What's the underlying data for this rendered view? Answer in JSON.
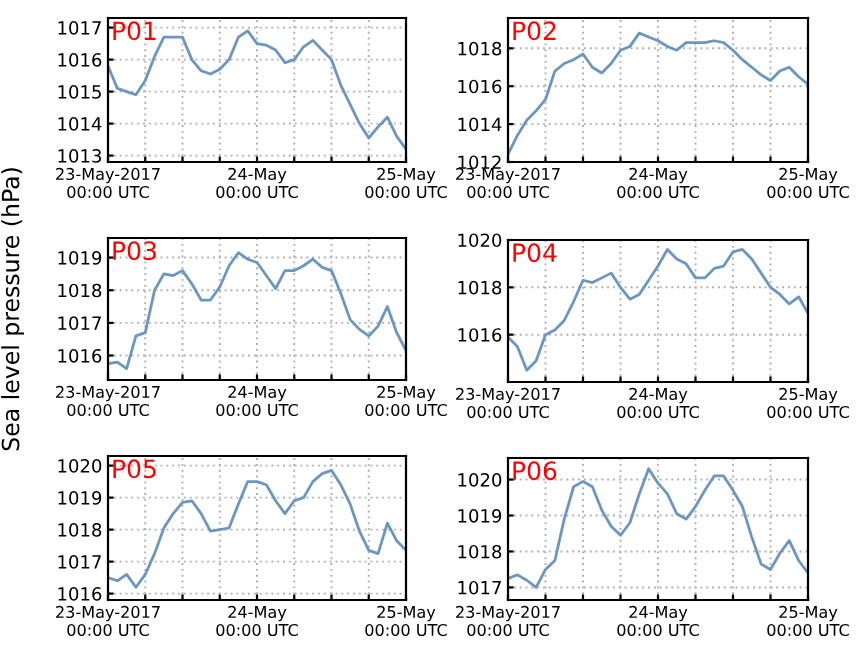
{
  "chart_data": [
    {
      "type": "line",
      "title": "P01",
      "x": [
        "2017-05-23T00:00",
        "2017-05-23T01:30",
        "2017-05-23T03:00",
        "2017-05-23T04:30",
        "2017-05-23T06:00",
        "2017-05-23T07:30",
        "2017-05-23T09:00",
        "2017-05-23T10:30",
        "2017-05-23T12:00",
        "2017-05-23T13:30",
        "2017-05-23T15:00",
        "2017-05-23T16:30",
        "2017-05-23T18:00",
        "2017-05-23T19:30",
        "2017-05-23T21:00",
        "2017-05-23T22:30",
        "2017-05-24T00:00",
        "2017-05-24T01:30",
        "2017-05-24T03:00",
        "2017-05-24T04:30",
        "2017-05-24T06:00",
        "2017-05-24T07:30",
        "2017-05-24T09:00",
        "2017-05-24T10:30",
        "2017-05-24T12:00",
        "2017-05-24T13:30",
        "2017-05-24T15:00",
        "2017-05-24T16:30",
        "2017-05-24T18:00",
        "2017-05-24T19:30",
        "2017-05-24T21:00",
        "2017-05-24T22:30",
        "2017-05-25T00:00"
      ],
      "series": [
        {
          "color": "#6a96c0",
          "values": [
            1015.8,
            1015.1,
            1015.0,
            1014.9,
            1015.35,
            1016.1,
            1016.7,
            1016.7,
            1016.7,
            1016.0,
            1015.65,
            1015.55,
            1015.7,
            1016.0,
            1016.7,
            1016.9,
            1016.5,
            1016.45,
            1016.3,
            1015.9,
            1016.0,
            1016.4,
            1016.6,
            1016.3,
            1016.0,
            1015.2,
            1014.6,
            1014.0,
            1013.55,
            1013.9,
            1014.2,
            1013.6,
            1013.2
          ]
        }
      ],
      "xlim": [
        "2017-05-23T00:00",
        "2017-05-25T00:00"
      ],
      "xticks": [
        {
          "value": "2017-05-23T00:00",
          "label": "23-May-2017\n00:00 UTC"
        },
        {
          "value": "2017-05-23T06:00",
          "label": null
        },
        {
          "value": "2017-05-23T12:00",
          "label": null
        },
        {
          "value": "2017-05-23T18:00",
          "label": null
        },
        {
          "value": "2017-05-24T00:00",
          "label": "24-May\n00:00 UTC"
        },
        {
          "value": "2017-05-24T06:00",
          "label": null
        },
        {
          "value": "2017-05-24T12:00",
          "label": null
        },
        {
          "value": "2017-05-24T18:00",
          "label": null
        },
        {
          "value": "2017-05-25T00:00",
          "label": "25-May\n00:00 UTC"
        }
      ],
      "ylim": [
        1012.8,
        1017.3
      ],
      "yticks": [
        1013,
        1014,
        1015,
        1016,
        1017
      ],
      "grid": true,
      "line_style": "solid"
    },
    {
      "type": "line",
      "title": "P02",
      "x": [
        "2017-05-23T00:00",
        "2017-05-23T01:30",
        "2017-05-23T03:00",
        "2017-05-23T04:30",
        "2017-05-23T06:00",
        "2017-05-23T07:30",
        "2017-05-23T09:00",
        "2017-05-23T10:30",
        "2017-05-23T12:00",
        "2017-05-23T13:30",
        "2017-05-23T15:00",
        "2017-05-23T16:30",
        "2017-05-23T18:00",
        "2017-05-23T19:30",
        "2017-05-23T21:00",
        "2017-05-23T22:30",
        "2017-05-24T00:00",
        "2017-05-24T01:30",
        "2017-05-24T03:00",
        "2017-05-24T04:30",
        "2017-05-24T06:00",
        "2017-05-24T07:30",
        "2017-05-24T09:00",
        "2017-05-24T10:30",
        "2017-05-24T12:00",
        "2017-05-24T13:30",
        "2017-05-24T15:00",
        "2017-05-24T16:30",
        "2017-05-24T18:00",
        "2017-05-24T19:30",
        "2017-05-24T21:00",
        "2017-05-24T22:30",
        "2017-05-25T00:00"
      ],
      "series": [
        {
          "color": "#6a96c0",
          "values": [
            1012.4,
            1013.4,
            1014.2,
            1014.7,
            1015.3,
            1016.8,
            1017.2,
            1017.4,
            1017.7,
            1017.0,
            1016.7,
            1017.2,
            1017.9,
            1018.1,
            1018.8,
            1018.6,
            1018.4,
            1018.1,
            1017.9,
            1018.3,
            1018.3,
            1018.3,
            1018.4,
            1018.3,
            1017.9,
            1017.4,
            1017.0,
            1016.6,
            1016.3,
            1016.8,
            1017.0,
            1016.5,
            1016.1
          ]
        }
      ],
      "xlim": [
        "2017-05-23T00:00",
        "2017-05-25T00:00"
      ],
      "xticks": [
        {
          "value": "2017-05-23T00:00",
          "label": "23-May-2017\n00:00 UTC"
        },
        {
          "value": "2017-05-23T06:00",
          "label": null
        },
        {
          "value": "2017-05-23T12:00",
          "label": null
        },
        {
          "value": "2017-05-23T18:00",
          "label": null
        },
        {
          "value": "2017-05-24T00:00",
          "label": "24-May\n00:00 UTC"
        },
        {
          "value": "2017-05-24T06:00",
          "label": null
        },
        {
          "value": "2017-05-24T12:00",
          "label": null
        },
        {
          "value": "2017-05-24T18:00",
          "label": null
        },
        {
          "value": "2017-05-25T00:00",
          "label": "25-May\n00:00 UTC"
        }
      ],
      "ylim": [
        1012,
        1019.6
      ],
      "yticks": [
        1012,
        1014,
        1016,
        1018
      ],
      "grid": true,
      "line_style": "solid"
    },
    {
      "type": "line",
      "title": "P03",
      "ylabel": "Sea level pressure (hPa)",
      "x": [
        "2017-05-23T00:00",
        "2017-05-23T01:30",
        "2017-05-23T03:00",
        "2017-05-23T04:30",
        "2017-05-23T06:00",
        "2017-05-23T07:30",
        "2017-05-23T09:00",
        "2017-05-23T10:30",
        "2017-05-23T12:00",
        "2017-05-23T13:30",
        "2017-05-23T15:00",
        "2017-05-23T16:30",
        "2017-05-23T18:00",
        "2017-05-23T19:30",
        "2017-05-23T21:00",
        "2017-05-23T22:30",
        "2017-05-24T00:00",
        "2017-05-24T01:30",
        "2017-05-24T03:00",
        "2017-05-24T04:30",
        "2017-05-24T06:00",
        "2017-05-24T07:30",
        "2017-05-24T09:00",
        "2017-05-24T10:30",
        "2017-05-24T12:00",
        "2017-05-24T13:30",
        "2017-05-24T15:00",
        "2017-05-24T16:30",
        "2017-05-24T18:00",
        "2017-05-24T19:30",
        "2017-05-24T21:00",
        "2017-05-24T22:30",
        "2017-05-25T00:00"
      ],
      "series": [
        {
          "color": "#6a96c0",
          "values": [
            1015.75,
            1015.8,
            1015.6,
            1016.6,
            1016.7,
            1018.0,
            1018.5,
            1018.45,
            1018.6,
            1018.2,
            1017.7,
            1017.7,
            1018.1,
            1018.75,
            1019.15,
            1018.95,
            1018.85,
            1018.45,
            1018.05,
            1018.6,
            1018.6,
            1018.75,
            1018.95,
            1018.7,
            1018.6,
            1017.9,
            1017.1,
            1016.8,
            1016.6,
            1016.9,
            1017.5,
            1016.7,
            1016.15
          ]
        }
      ],
      "xlim": [
        "2017-05-23T00:00",
        "2017-05-25T00:00"
      ],
      "xticks": [
        {
          "value": "2017-05-23T00:00",
          "label": "23-May-2017\n00:00 UTC"
        },
        {
          "value": "2017-05-23T06:00",
          "label": null
        },
        {
          "value": "2017-05-23T12:00",
          "label": null
        },
        {
          "value": "2017-05-23T18:00",
          "label": null
        },
        {
          "value": "2017-05-24T00:00",
          "label": "24-May\n00:00 UTC"
        },
        {
          "value": "2017-05-24T06:00",
          "label": null
        },
        {
          "value": "2017-05-24T12:00",
          "label": null
        },
        {
          "value": "2017-05-24T18:00",
          "label": null
        },
        {
          "value": "2017-05-25T00:00",
          "label": "25-May\n00:00 UTC"
        }
      ],
      "ylim": [
        1015.25,
        1019.6
      ],
      "yticks": [
        1016,
        1017,
        1018,
        1019
      ],
      "grid": true,
      "line_style": "solid"
    },
    {
      "type": "line",
      "title": "P04",
      "x": [
        "2017-05-23T00:00",
        "2017-05-23T01:30",
        "2017-05-23T03:00",
        "2017-05-23T04:30",
        "2017-05-23T06:00",
        "2017-05-23T07:30",
        "2017-05-23T09:00",
        "2017-05-23T10:30",
        "2017-05-23T12:00",
        "2017-05-23T13:30",
        "2017-05-23T15:00",
        "2017-05-23T16:30",
        "2017-05-23T18:00",
        "2017-05-23T19:30",
        "2017-05-23T21:00",
        "2017-05-23T22:30",
        "2017-05-24T00:00",
        "2017-05-24T01:30",
        "2017-05-24T03:00",
        "2017-05-24T04:30",
        "2017-05-24T06:00",
        "2017-05-24T07:30",
        "2017-05-24T09:00",
        "2017-05-24T10:30",
        "2017-05-24T12:00",
        "2017-05-24T13:30",
        "2017-05-24T15:00",
        "2017-05-24T16:30",
        "2017-05-24T18:00",
        "2017-05-24T19:30",
        "2017-05-24T21:00",
        "2017-05-24T22:30",
        "2017-05-25T00:00"
      ],
      "series": [
        {
          "color": "#6a96c0",
          "values": [
            1015.9,
            1015.5,
            1014.5,
            1014.9,
            1016.0,
            1016.2,
            1016.6,
            1017.4,
            1018.3,
            1018.2,
            1018.4,
            1018.6,
            1018.0,
            1017.5,
            1017.7,
            1018.3,
            1018.9,
            1019.6,
            1019.2,
            1019.0,
            1018.4,
            1018.4,
            1018.8,
            1018.9,
            1019.5,
            1019.6,
            1019.2,
            1018.6,
            1018.0,
            1017.7,
            1017.3,
            1017.6,
            1016.9
          ]
        }
      ],
      "xlim": [
        "2017-05-23T00:00",
        "2017-05-25T00:00"
      ],
      "xticks": [
        {
          "value": "2017-05-23T00:00",
          "label": "23-May-2017\n00:00 UTC"
        },
        {
          "value": "2017-05-23T06:00",
          "label": null
        },
        {
          "value": "2017-05-23T12:00",
          "label": null
        },
        {
          "value": "2017-05-23T18:00",
          "label": null
        },
        {
          "value": "2017-05-24T00:00",
          "label": "24-May\n00:00 UTC"
        },
        {
          "value": "2017-05-24T06:00",
          "label": null
        },
        {
          "value": "2017-05-24T12:00",
          "label": null
        },
        {
          "value": "2017-05-24T18:00",
          "label": null
        },
        {
          "value": "2017-05-25T00:00",
          "label": "25-May\n00:00 UTC"
        }
      ],
      "ylim": [
        1014,
        1020
      ],
      "yticks": [
        1016,
        1018,
        1020
      ],
      "grid": true,
      "line_style": "solid"
    },
    {
      "type": "line",
      "title": "P05",
      "x": [
        "2017-05-23T00:00",
        "2017-05-23T01:30",
        "2017-05-23T03:00",
        "2017-05-23T04:30",
        "2017-05-23T06:00",
        "2017-05-23T07:30",
        "2017-05-23T09:00",
        "2017-05-23T10:30",
        "2017-05-23T12:00",
        "2017-05-23T13:30",
        "2017-05-23T15:00",
        "2017-05-23T16:30",
        "2017-05-23T18:00",
        "2017-05-23T19:30",
        "2017-05-23T21:00",
        "2017-05-23T22:30",
        "2017-05-24T00:00",
        "2017-05-24T01:30",
        "2017-05-24T03:00",
        "2017-05-24T04:30",
        "2017-05-24T06:00",
        "2017-05-24T07:30",
        "2017-05-24T09:00",
        "2017-05-24T10:30",
        "2017-05-24T12:00",
        "2017-05-24T13:30",
        "2017-05-24T15:00",
        "2017-05-24T16:30",
        "2017-05-24T18:00",
        "2017-05-24T19:30",
        "2017-05-24T21:00",
        "2017-05-24T22:30",
        "2017-05-25T00:00"
      ],
      "series": [
        {
          "color": "#6a96c0",
          "values": [
            1016.5,
            1016.4,
            1016.6,
            1016.2,
            1016.6,
            1017.25,
            1018.05,
            1018.5,
            1018.85,
            1018.9,
            1018.5,
            1017.95,
            1018.0,
            1018.05,
            1018.8,
            1019.5,
            1019.5,
            1019.4,
            1018.9,
            1018.5,
            1018.9,
            1019.0,
            1019.5,
            1019.75,
            1019.85,
            1019.4,
            1018.8,
            1017.95,
            1017.35,
            1017.25,
            1018.2,
            1017.65,
            1017.35
          ]
        }
      ],
      "xlim": [
        "2017-05-23T00:00",
        "2017-05-25T00:00"
      ],
      "xticks": [
        {
          "value": "2017-05-23T00:00",
          "label": "23-May-2017\n00:00 UTC"
        },
        {
          "value": "2017-05-23T06:00",
          "label": null
        },
        {
          "value": "2017-05-23T12:00",
          "label": null
        },
        {
          "value": "2017-05-23T18:00",
          "label": null
        },
        {
          "value": "2017-05-24T00:00",
          "label": "24-May\n00:00 UTC"
        },
        {
          "value": "2017-05-24T06:00",
          "label": null
        },
        {
          "value": "2017-05-24T12:00",
          "label": null
        },
        {
          "value": "2017-05-24T18:00",
          "label": null
        },
        {
          "value": "2017-05-25T00:00",
          "label": "25-May\n00:00 UTC"
        }
      ],
      "ylim": [
        1015.8,
        1020.3
      ],
      "yticks": [
        1016,
        1017,
        1018,
        1019,
        1020
      ],
      "grid": true,
      "line_style": "solid"
    },
    {
      "type": "line",
      "title": "P06",
      "x": [
        "2017-05-23T00:00",
        "2017-05-23T01:30",
        "2017-05-23T03:00",
        "2017-05-23T04:30",
        "2017-05-23T06:00",
        "2017-05-23T07:30",
        "2017-05-23T09:00",
        "2017-05-23T10:30",
        "2017-05-23T12:00",
        "2017-05-23T13:30",
        "2017-05-23T15:00",
        "2017-05-23T16:30",
        "2017-05-23T18:00",
        "2017-05-23T19:30",
        "2017-05-23T21:00",
        "2017-05-23T22:30",
        "2017-05-24T00:00",
        "2017-05-24T01:30",
        "2017-05-24T03:00",
        "2017-05-24T04:30",
        "2017-05-24T06:00",
        "2017-05-24T07:30",
        "2017-05-24T09:00",
        "2017-05-24T10:30",
        "2017-05-24T12:00",
        "2017-05-24T13:30",
        "2017-05-24T15:00",
        "2017-05-24T16:30",
        "2017-05-24T18:00",
        "2017-05-24T19:30",
        "2017-05-24T21:00",
        "2017-05-24T22:30",
        "2017-05-25T00:00"
      ],
      "series": [
        {
          "color": "#6a96c0",
          "values": [
            1017.25,
            1017.35,
            1017.2,
            1017.0,
            1017.5,
            1017.75,
            1018.9,
            1019.8,
            1019.95,
            1019.8,
            1019.15,
            1018.7,
            1018.45,
            1018.8,
            1019.6,
            1020.3,
            1019.9,
            1019.6,
            1019.05,
            1018.9,
            1019.25,
            1019.7,
            1020.1,
            1020.1,
            1019.7,
            1019.25,
            1018.4,
            1017.65,
            1017.5,
            1017.95,
            1018.3,
            1017.75,
            1017.4
          ]
        }
      ],
      "xlim": [
        "2017-05-23T00:00",
        "2017-05-25T00:00"
      ],
      "xticks": [
        {
          "value": "2017-05-23T00:00",
          "label": "23-May-2017\n00:00 UTC"
        },
        {
          "value": "2017-05-23T06:00",
          "label": null
        },
        {
          "value": "2017-05-23T12:00",
          "label": null
        },
        {
          "value": "2017-05-23T18:00",
          "label": null
        },
        {
          "value": "2017-05-24T00:00",
          "label": "24-May\n00:00 UTC"
        },
        {
          "value": "2017-05-24T06:00",
          "label": null
        },
        {
          "value": "2017-05-24T12:00",
          "label": null
        },
        {
          "value": "2017-05-24T18:00",
          "label": null
        },
        {
          "value": "2017-05-25T00:00",
          "label": "25-May\n00:00 UTC"
        }
      ],
      "ylim": [
        1016.65,
        1020.6
      ],
      "yticks": [
        1017,
        1018,
        1019,
        1020
      ],
      "grid": true,
      "line_style": "solid"
    }
  ]
}
